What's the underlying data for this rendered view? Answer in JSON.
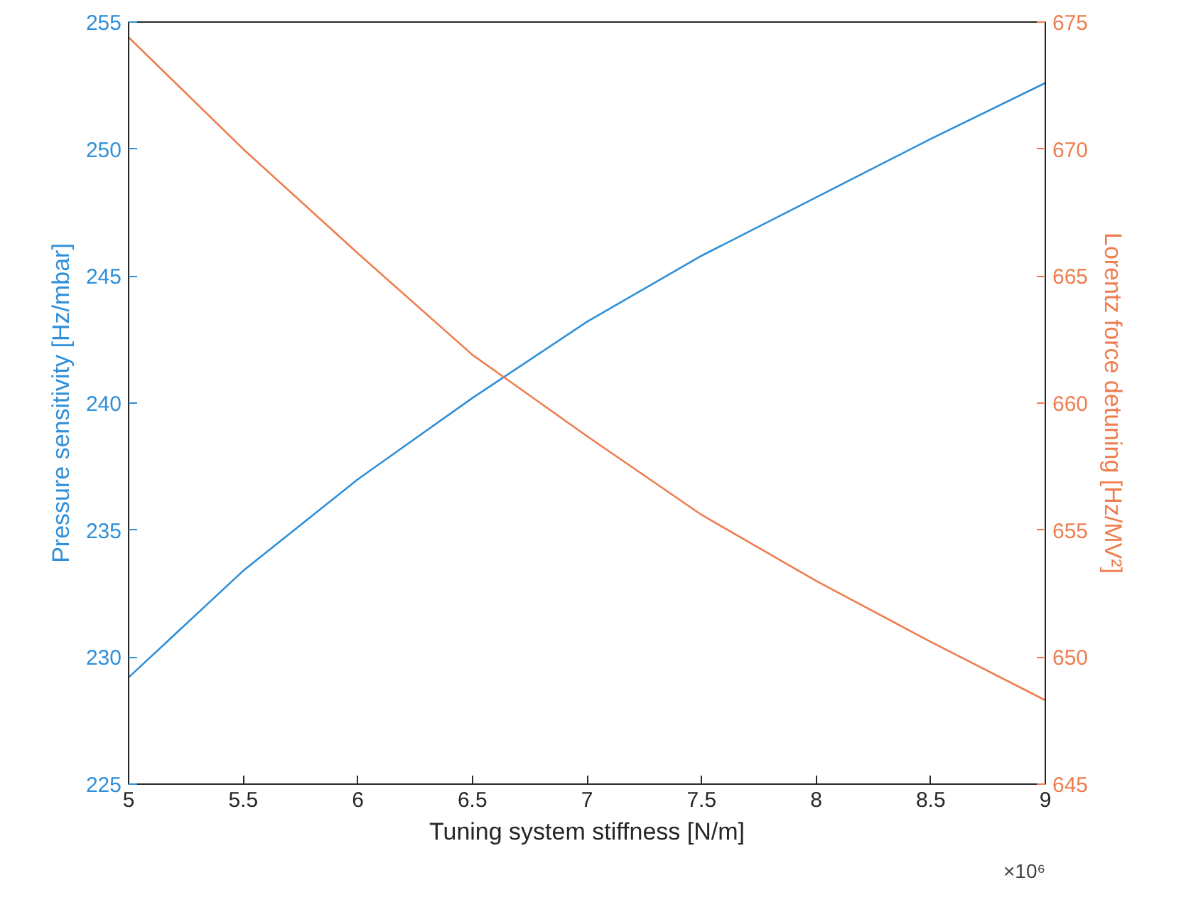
{
  "chart_data": {
    "type": "line",
    "xlabel": "Tuning system stiffness [N/m]",
    "ylabel": "Pressure sensitivity [Hz/mbar]",
    "y2label": "Lorentz force detuning [Hz/MV²]",
    "x": [
      5,
      5.5,
      6,
      6.5,
      7,
      7.5,
      8,
      8.5,
      9
    ],
    "series": [
      {
        "color": "#2f8fd8",
        "values": [
          229.2,
          233.4,
          237.0,
          240.2,
          243.2,
          245.8,
          248.1,
          250.4,
          252.6
        ]
      },
      {
        "color": "#ee7d4f",
        "axis": "y2",
        "values": [
          674.4,
          670.0,
          665.9,
          661.9,
          658.7,
          655.6,
          653.0,
          650.6,
          648.3
        ]
      }
    ],
    "xlim": [
      5,
      9
    ],
    "xticks": [
      5,
      5.5,
      6,
      6.5,
      7,
      7.5,
      8,
      8.5,
      9
    ],
    "ylim": [
      225,
      255
    ],
    "yticks": [
      225,
      230,
      235,
      240,
      245,
      250,
      255
    ],
    "y2lim": [
      645,
      675
    ],
    "y2ticks": [
      645,
      650,
      655,
      660,
      665,
      670,
      675
    ],
    "annotations": [
      "×10⁶"
    ],
    "grid": false,
    "marker": "none",
    "line_style": "solid"
  }
}
